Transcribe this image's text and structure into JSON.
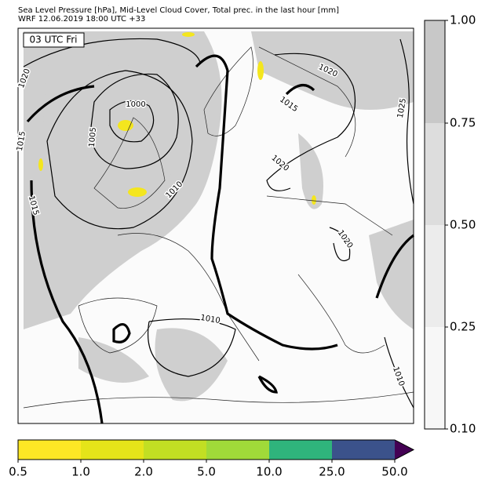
{
  "header": {
    "line1": "Sea Level Pressure [hPa], Mid-Level Cloud Cover, Total prec. in the last hour [mm]",
    "line2": "WRF 12.06.2019 18:00 UTC +33"
  },
  "map": {
    "time_label": "03 UTC Fri",
    "isobar_labels": [
      "1020",
      "1015",
      "1015",
      "1005",
      "1000",
      "1010",
      "1020",
      "1015",
      "1020",
      "1025",
      "1020",
      "1010",
      "1010"
    ]
  },
  "cloud_colorbar": {
    "ticks": [
      "0.10",
      "0.25",
      "0.50",
      "0.75",
      "1.00"
    ]
  },
  "precip_colorbar": {
    "ticks": [
      "0.5",
      "1.0",
      "2.0",
      "5.0",
      "10.0",
      "25.0",
      "50.0"
    ]
  }
}
